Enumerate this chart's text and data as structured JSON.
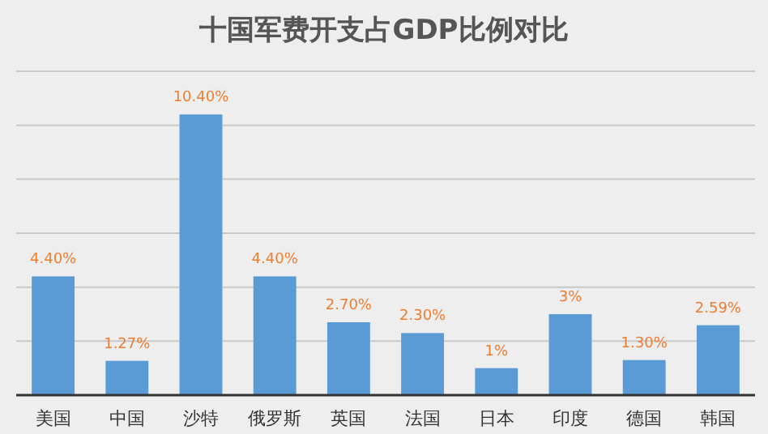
{
  "chart_data": {
    "type": "bar",
    "title": "十国军费开支占GDP比例对比",
    "categories": [
      "美国",
      "中国",
      "沙特",
      "俄罗斯",
      "英国",
      "法国",
      "日本",
      "印度",
      "德国",
      "韩国"
    ],
    "values": [
      4.4,
      1.27,
      10.4,
      4.4,
      2.7,
      2.3,
      1,
      3,
      1.3,
      2.59
    ],
    "value_labels": [
      "4.40%",
      "1.27%",
      "10.40%",
      "4.40%",
      "2.70%",
      "2.30%",
      "1%",
      "3%",
      "1.30%",
      "2.59%"
    ],
    "color": "#5b9bd5",
    "ylim": [
      0,
      12
    ],
    "yticks": [
      {
        "value": 0,
        "label": null
      },
      {
        "value": 2,
        "label": null
      },
      {
        "value": 4,
        "label": null
      },
      {
        "value": 6,
        "label": null
      },
      {
        "value": 8,
        "label": null
      },
      {
        "value": 10,
        "label": null
      },
      {
        "value": 12,
        "label": null
      }
    ],
    "grid": "y",
    "tick_labels": "x"
  }
}
